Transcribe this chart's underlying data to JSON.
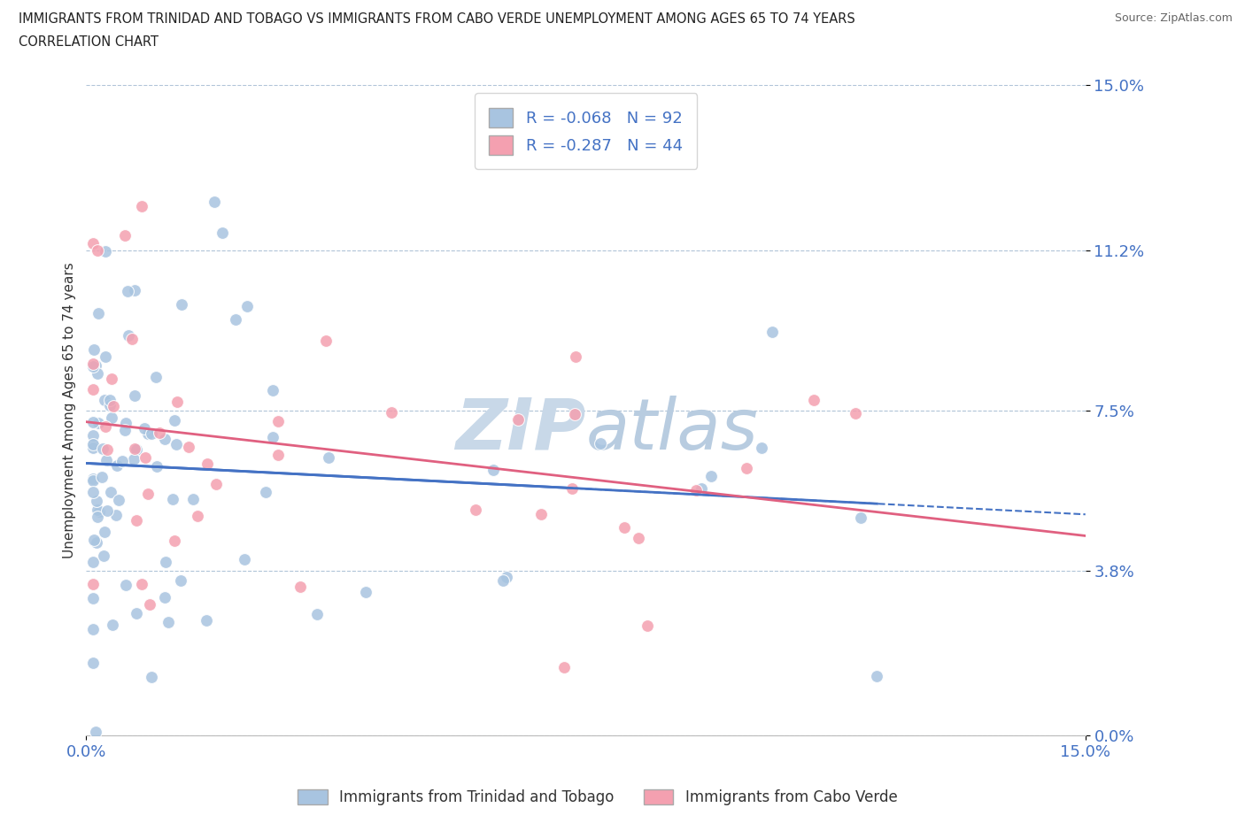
{
  "title_line1": "IMMIGRANTS FROM TRINIDAD AND TOBAGO VS IMMIGRANTS FROM CABO VERDE UNEMPLOYMENT AMONG AGES 65 TO 74 YEARS",
  "title_line2": "CORRELATION CHART",
  "source_text": "Source: ZipAtlas.com",
  "ylabel": "Unemployment Among Ages 65 to 74 years",
  "xlim": [
    0.0,
    0.15
  ],
  "ylim": [
    0.0,
    0.15
  ],
  "ytick_labels": [
    "0.0%",
    "3.8%",
    "7.5%",
    "11.2%",
    "15.0%"
  ],
  "ytick_values": [
    0.0,
    0.038,
    0.075,
    0.112,
    0.15
  ],
  "color_blue": "#a8c4e0",
  "color_pink": "#f4a0b0",
  "line_color_blue": "#4472c4",
  "line_color_pink": "#e06080",
  "legend_text_color": "#4472c4",
  "watermark_color": "#c8d8e8",
  "R1": -0.068,
  "N1": 92,
  "R2": -0.287,
  "N2": 44,
  "label1": "Immigrants from Trinidad and Tobago",
  "label2": "Immigrants from Cabo Verde",
  "blue_intercept": 0.065,
  "blue_slope": -0.18,
  "pink_intercept": 0.075,
  "pink_slope": -0.28
}
